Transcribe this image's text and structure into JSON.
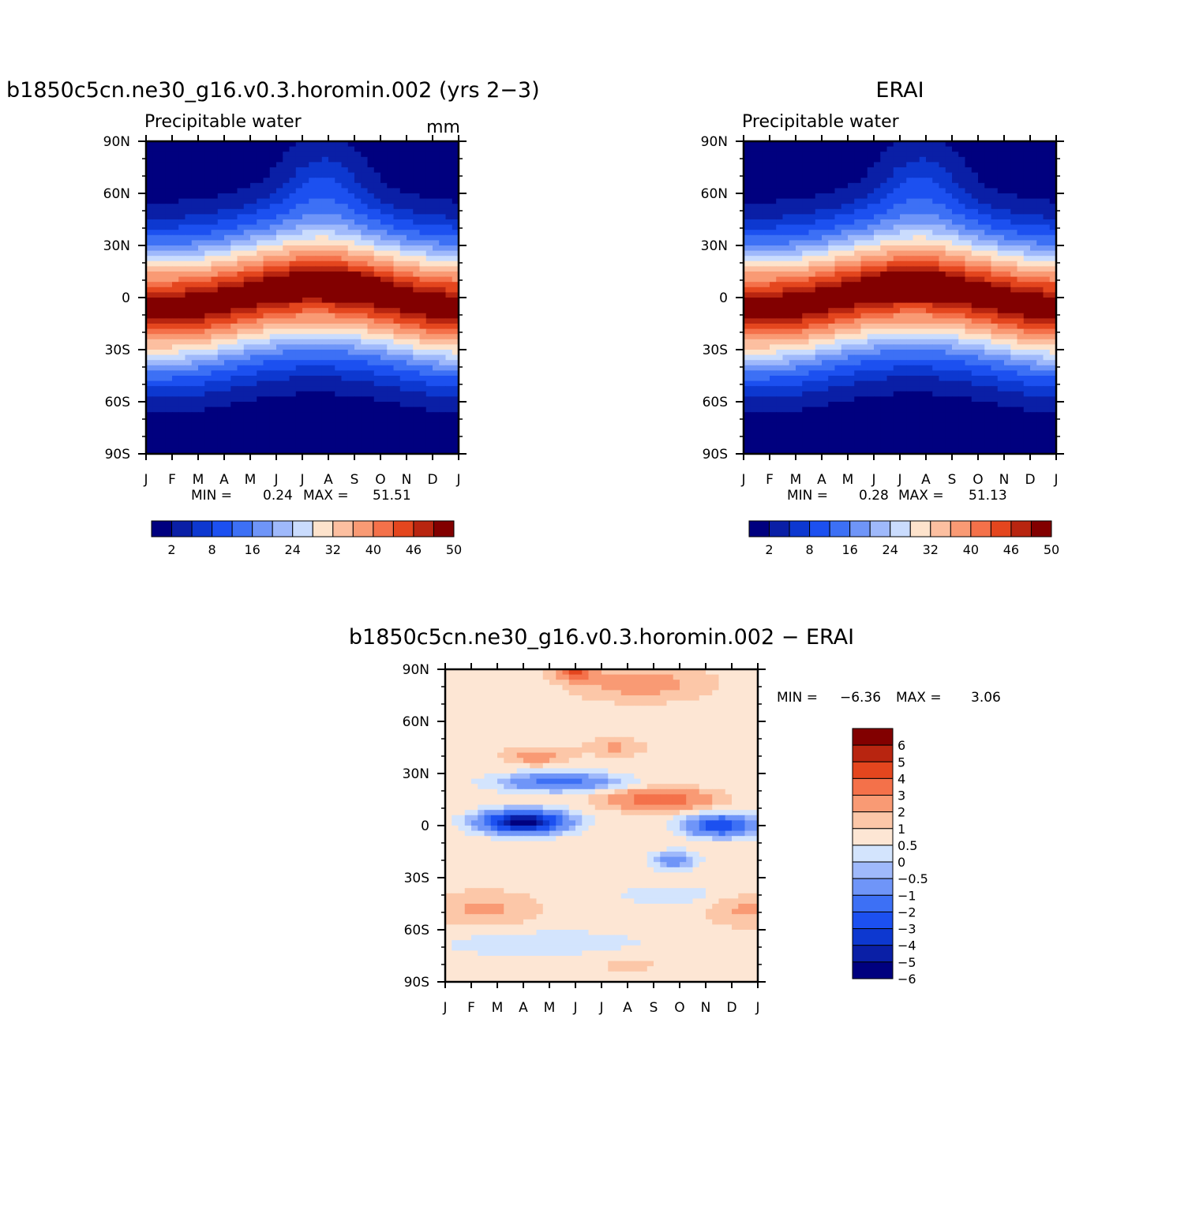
{
  "colors": {
    "seq": [
      "#00007f",
      "#0a1fa6",
      "#0d38d0",
      "#1c50f0",
      "#3d70f5",
      "#6f95f8",
      "#9fb9fb",
      "#cadcfd",
      "#fde3cc",
      "#fcbfa0",
      "#f99a74",
      "#f4714a",
      "#e4461e",
      "#b82510",
      "#820000"
    ],
    "diff": [
      "#00007f",
      "#0a1fa6",
      "#0d38d0",
      "#1c50f0",
      "#3d70f5",
      "#6f95f8",
      "#9fb9fb",
      "#d3e4fd",
      "#fde6d4",
      "#fcc7a8",
      "#f99a74",
      "#f4714a",
      "#e4461e",
      "#b82510",
      "#820000"
    ]
  },
  "panels": [
    {
      "title": "b1850c5cn.ne30_g16.v0.3.horomin.002 (yrs 2−3)",
      "left_label": "Precipitable water",
      "right_label": "mm",
      "min_label": "MIN =",
      "min_value": "0.24",
      "max_label": "MAX =",
      "max_value": "51.51"
    },
    {
      "title": "ERAI",
      "left_label": "Precipitable water",
      "right_label": "",
      "min_label": "MIN =",
      "min_value": "0.28",
      "max_label": "MAX =",
      "max_value": "51.13"
    },
    {
      "title": "b1850c5cn.ne30_g16.v0.3.horomin.002 − ERAI",
      "min_label": "MIN =",
      "min_value": "−6.36",
      "max_label": "MAX =",
      "max_value": "3.06"
    }
  ],
  "chart_data": [
    {
      "type": "heatmap",
      "title": "b1850c5cn.ne30_g16.v0.3.horomin.002 (yrs 2−3)",
      "field": "Precipitable water",
      "units": "mm",
      "x_ticks": [
        "J",
        "F",
        "M",
        "A",
        "M",
        "J",
        "J",
        "A",
        "S",
        "O",
        "N",
        "D",
        "J"
      ],
      "y_ticks": [
        "90N",
        "60N",
        "30N",
        "0",
        "30S",
        "60S",
        "90S"
      ],
      "ylim": [
        -90,
        90
      ],
      "min": 0.24,
      "max": 51.51,
      "levels": [
        2,
        5,
        8,
        12,
        16,
        20,
        24,
        28,
        32,
        36,
        40,
        43,
        46,
        48,
        50
      ],
      "colorbar_labels": [
        "2",
        "8",
        "16",
        "24",
        "32",
        "40",
        "46",
        "50"
      ],
      "peak": {
        "month": 7.2,
        "lat": 10
      }
    },
    {
      "type": "heatmap",
      "title": "ERAI",
      "field": "Precipitable water",
      "x_ticks": [
        "J",
        "F",
        "M",
        "A",
        "M",
        "J",
        "J",
        "A",
        "S",
        "O",
        "N",
        "D",
        "J"
      ],
      "y_ticks": [
        "90N",
        "60N",
        "30N",
        "0",
        "30S",
        "60S",
        "90S"
      ],
      "ylim": [
        -90,
        90
      ],
      "min": 0.28,
      "max": 51.13,
      "levels": [
        2,
        5,
        8,
        12,
        16,
        20,
        24,
        28,
        32,
        36,
        40,
        43,
        46,
        48,
        50
      ],
      "colorbar_labels": [
        "2",
        "8",
        "16",
        "24",
        "32",
        "40",
        "46",
        "50"
      ],
      "peak": {
        "month": 6.5,
        "lat": 8
      }
    },
    {
      "type": "heatmap",
      "title": "b1850c5cn.ne30_g16.v0.3.horomin.002 − ERAI",
      "x_ticks": [
        "J",
        "F",
        "M",
        "A",
        "M",
        "J",
        "J",
        "A",
        "S",
        "O",
        "N",
        "D",
        "J"
      ],
      "y_ticks": [
        "90N",
        "60N",
        "30N",
        "0",
        "30S",
        "60S",
        "90S"
      ],
      "ylim": [
        -90,
        90
      ],
      "min": -6.36,
      "max": 3.06,
      "levels": [
        -6,
        -5,
        -4,
        -3,
        -2,
        -1,
        -0.5,
        0,
        0.5,
        1,
        2,
        3,
        4,
        5,
        6
      ],
      "colorbar_labels": [
        "6",
        "5",
        "4",
        "3",
        "2",
        "1",
        "0.5",
        "0",
        "−0.5",
        "−1",
        "−2",
        "−3",
        "−4",
        "−5",
        "−6"
      ],
      "features": [
        {
          "month": 3.0,
          "lat": 2,
          "value": -6.3
        },
        {
          "month": 10.5,
          "lat": 0,
          "value": -3.5
        },
        {
          "month": 4.5,
          "lat": 25,
          "value": -2.5
        },
        {
          "month": 8.5,
          "lat": 15,
          "value": 2.5
        },
        {
          "month": 5.0,
          "lat": 88,
          "value": 2.8
        }
      ]
    }
  ]
}
